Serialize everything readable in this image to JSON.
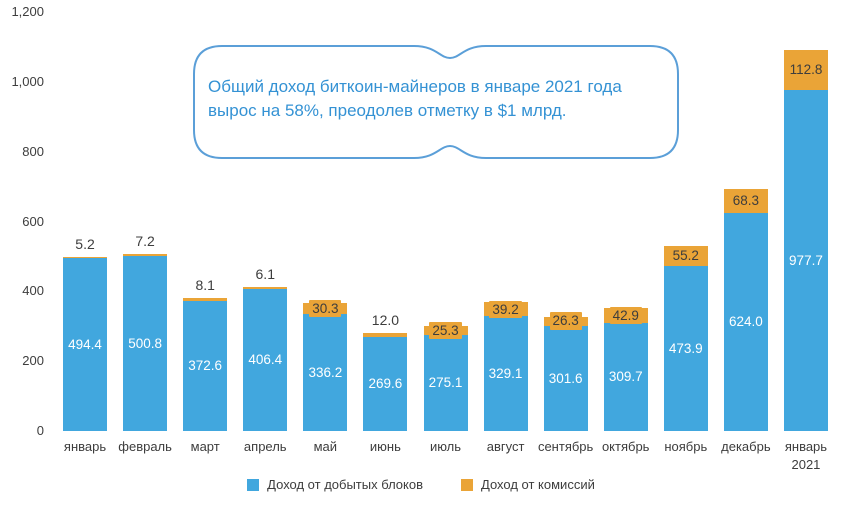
{
  "annotation": {
    "text": "Общий доход биткоин-майнеров в январе 2021 года вырос на 58%, преодолев отметку в $1 млрд.",
    "text_color": "#3492d4",
    "border_color": "#5b9fd8"
  },
  "chart_data": {
    "type": "bar",
    "stacked": true,
    "title": "",
    "xlabel": "",
    "ylabel": "",
    "categories": [
      "январь",
      "февраль",
      "март",
      "апрель",
      "май",
      "июнь",
      "июль",
      "август",
      "сентябрь",
      "октябрь",
      "ноябрь",
      "декабрь",
      "январь\n2021"
    ],
    "series": [
      {
        "name": "Доход от добытых блоков",
        "color": "#41a7de",
        "values": [
          494.4,
          500.8,
          372.6,
          406.4,
          336.2,
          269.6,
          275.1,
          329.1,
          301.6,
          309.7,
          473.9,
          624.0,
          977.7
        ]
      },
      {
        "name": "Доход от комиссий",
        "color": "#eaa437",
        "values": [
          5.2,
          7.2,
          8.1,
          6.1,
          30.3,
          12.0,
          25.3,
          39.2,
          26.3,
          42.9,
          55.2,
          68.3,
          112.8
        ]
      }
    ],
    "ylim": [
      0,
      1200
    ],
    "yticks": [
      0,
      200,
      400,
      600,
      800,
      1000,
      1200
    ],
    "ytick_labels": [
      "0",
      "200",
      "400",
      "600",
      "800",
      "1,000",
      "1,200"
    ],
    "grid": false,
    "legend_position": "bottom",
    "inside_label_threshold": 20
  },
  "legend": {
    "items": [
      {
        "label": "Доход от добытых блоков",
        "color": "#41a7de"
      },
      {
        "label": "Доход от комиссий",
        "color": "#eaa437"
      }
    ]
  }
}
